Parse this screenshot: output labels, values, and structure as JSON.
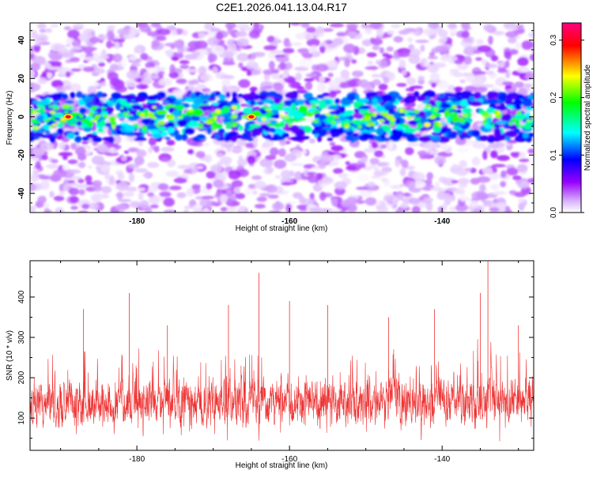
{
  "figure": {
    "title": "C2E1.2026.041.13.04.R17"
  },
  "chart_data": [
    {
      "type": "heatmap",
      "title": "C2E1.2026.041.13.04.R17",
      "xlabel": "Height of straight line (km)",
      "ylabel": "Frequency (Hz)",
      "xlim": [
        -194,
        -128
      ],
      "ylim": [
        -50,
        49
      ],
      "xticks": [
        -180,
        -160,
        -140
      ],
      "yticks": [
        -40,
        -20,
        0,
        20,
        40
      ],
      "signal_band_hz": [
        -12,
        12
      ],
      "peak_amplitude": 0.33,
      "peak_locations": [
        {
          "x": -165,
          "y": 0
        },
        {
          "x": -189,
          "y": 0
        }
      ],
      "colorbar": {
        "label": "Normalized spectral amplitude",
        "range": [
          0.0,
          0.33
        ],
        "ticks": [
          0.0,
          0.1,
          0.2,
          0.3
        ],
        "tick_labels": [
          "0.0",
          "0.1",
          "0.2",
          "0.3"
        ],
        "colors": [
          "#ffffff",
          "#d9b3ff",
          "#9900ff",
          "#0000ff",
          "#00ffff",
          "#00ff00",
          "#ffff00",
          "#ff0000",
          "#ff0080"
        ]
      }
    },
    {
      "type": "line",
      "xlabel": "Height of straight line (km)",
      "ylabel": "SNR (10 * v/v)",
      "xlim": [
        -194,
        -128
      ],
      "ylim": [
        20,
        490
      ],
      "xticks": [
        -180,
        -160,
        -140
      ],
      "yticks": [
        100,
        200,
        300,
        400
      ],
      "color": "#ee3333",
      "baseline_snr": 140,
      "spikes": [
        {
          "x": -187,
          "y": 370
        },
        {
          "x": -181,
          "y": 410
        },
        {
          "x": -176,
          "y": 330
        },
        {
          "x": -168,
          "y": 380
        },
        {
          "x": -164,
          "y": 460
        },
        {
          "x": -160,
          "y": 390
        },
        {
          "x": -155,
          "y": 380
        },
        {
          "x": -147,
          "y": 350
        },
        {
          "x": -141,
          "y": 370
        },
        {
          "x": -135,
          "y": 410
        },
        {
          "x": -134,
          "y": 490
        },
        {
          "x": -130,
          "y": 330
        }
      ]
    }
  ]
}
